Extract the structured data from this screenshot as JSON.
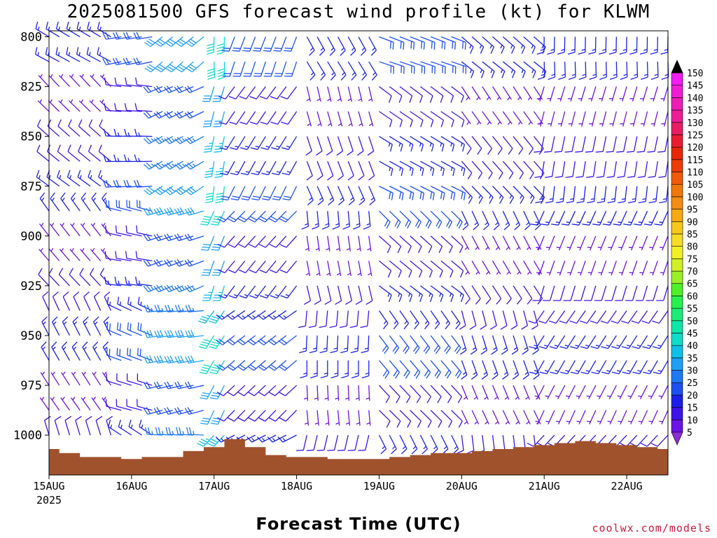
{
  "header": {
    "title": "2025081500 GFS forecast wind profile (kt) for KLWM"
  },
  "footer": {
    "x_axis_title": "Forecast Time (UTC)",
    "credit": "coolwx.com/models"
  },
  "chart_data": {
    "type": "wind-barb-profile",
    "title": "2025081500 GFS forecast wind profile (kt) for KLWM",
    "xlabel": "Forecast Time (UTC)",
    "ylabel": "",
    "x_ticks": [
      "15AUG",
      "16AUG",
      "17AUG",
      "18AUG",
      "19AUG",
      "20AUG",
      "21AUG",
      "22AUG"
    ],
    "x_tick_sub": "2025",
    "y_ticks": [
      800,
      825,
      850,
      875,
      900,
      925,
      950,
      975,
      1000
    ],
    "ylim": [
      1020,
      797
    ],
    "xlim_hours": [
      0,
      180
    ],
    "time_step_hours": 3,
    "pressure_levels": [
      800,
      812.5,
      825,
      837.5,
      850,
      862.5,
      875,
      887.5,
      900,
      912.5,
      925,
      937.5,
      950,
      962.5,
      975,
      987.5,
      1000,
      1012.5
    ],
    "wind_speed_colorbar": {
      "levels": [
        5,
        10,
        15,
        20,
        25,
        30,
        35,
        40,
        45,
        50,
        55,
        60,
        65,
        70,
        75,
        80,
        85,
        90,
        95,
        100,
        105,
        110,
        115,
        120,
        125,
        130,
        135,
        140,
        145,
        150
      ],
      "colors": [
        "#8a1ee6",
        "#6a14e6",
        "#3c14e6",
        "#1c20e6",
        "#1e50f0",
        "#1f78f5",
        "#20a0f5",
        "#10c0e6",
        "#10dcc8",
        "#10e6a8",
        "#1eeb78",
        "#28f050",
        "#50f028",
        "#9af028",
        "#d2f028",
        "#f0f028",
        "#f5dc28",
        "#f5c81e",
        "#f5aa14",
        "#f58c14",
        "#f0780a",
        "#f05a0a",
        "#eb3c0a",
        "#e6280a",
        "#e61e32",
        "#e61e64",
        "#eb1e96",
        "#eb1eb4",
        "#f01ed2",
        "#f01ef0"
      ],
      "over_color": "#000000",
      "under_color": "#8c2bd8"
    },
    "wind_regimes": [
      {
        "from_h": 0,
        "to_h": 21,
        "direction_deg": 320,
        "speed_kt": 10
      },
      {
        "from_h": 21,
        "to_h": 33,
        "direction_deg": 280,
        "speed_kt": 15
      },
      {
        "from_h": 33,
        "to_h": 48,
        "direction_deg": 250,
        "speed_kt": 25
      },
      {
        "from_h": 48,
        "to_h": 54,
        "direction_deg": 200,
        "speed_kt": 35
      },
      {
        "from_h": 54,
        "to_h": 75,
        "direction_deg": 220,
        "speed_kt": 15
      },
      {
        "from_h": 75,
        "to_h": 96,
        "direction_deg": 170,
        "speed_kt": 10
      },
      {
        "from_h": 96,
        "to_h": 120,
        "direction_deg": 130,
        "speed_kt": 15
      },
      {
        "from_h": 120,
        "to_h": 144,
        "direction_deg": 150,
        "speed_kt": 10
      },
      {
        "from_h": 144,
        "to_h": 180,
        "direction_deg": 200,
        "speed_kt": 10
      }
    ],
    "surface_pressure": {
      "x_hours": [
        0,
        6,
        12,
        18,
        24,
        30,
        36,
        42,
        48,
        54,
        60,
        66,
        72,
        78,
        84,
        90,
        96,
        102,
        108,
        114,
        120,
        126,
        132,
        138,
        144,
        150,
        156,
        162,
        168,
        174,
        180
      ],
      "values": [
        1007,
        1009,
        1011,
        1011,
        1012,
        1011,
        1011,
        1008,
        1006,
        1002,
        1006,
        1010,
        1011,
        1011,
        1012,
        1012,
        1012,
        1011,
        1010,
        1009,
        1009,
        1008,
        1007,
        1006,
        1005,
        1004,
        1003,
        1004,
        1005,
        1006,
        1007
      ]
    },
    "ground_color": "#a0522d"
  }
}
